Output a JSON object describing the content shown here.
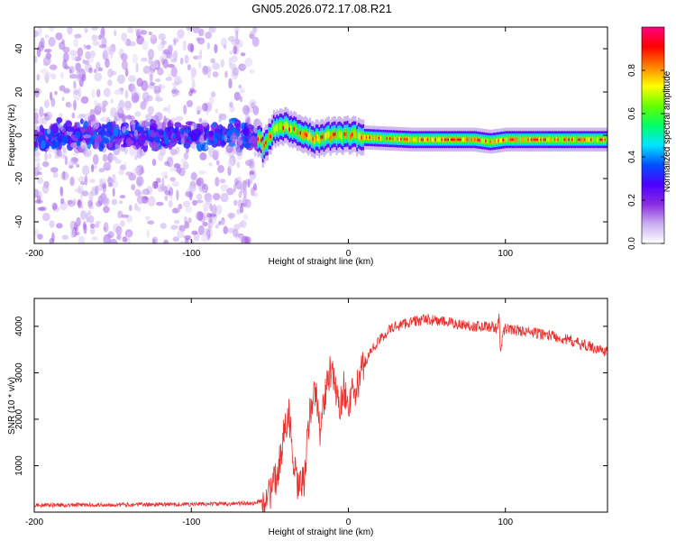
{
  "figure": {
    "title": "GN05.2026.072.17.08.R21"
  },
  "chart_data": [
    {
      "type": "heatmap",
      "title": "GN05.2026.072.17.08.R21",
      "xlabel": "Height of straight line (km)",
      "ylabel": "Frequency (Hz)",
      "xlim": [
        -200,
        165
      ],
      "ylim": [
        -50,
        50
      ],
      "xticks": [
        -200,
        -100,
        0,
        100
      ],
      "yticks": [
        -40,
        -20,
        0,
        20,
        40
      ],
      "colorbar": {
        "label": "Normalized spectral amplitude",
        "range": [
          0,
          1
        ],
        "ticks": [
          "0.0",
          "0.2",
          "0.4",
          "0.6",
          "0.8"
        ],
        "colors": [
          "#ffffff",
          "#c9aef0",
          "#8a2be2",
          "#4b00ff",
          "#0050ff",
          "#00e5ff",
          "#00ff66",
          "#66ff00",
          "#ffff00",
          "#ff8000",
          "#ff0000",
          "#ff0080"
        ]
      },
      "regions": [
        {
          "x": [
            -200,
            -58
          ],
          "description_value": "scattered",
          "freq_center": 0,
          "freq_spread": 50,
          "amplitude": [
            0.05,
            0.35
          ]
        },
        {
          "x": [
            -58,
            10
          ],
          "freq_center": 1,
          "freq_spread": 5,
          "amplitude": [
            0.3,
            0.9
          ]
        },
        {
          "x": [
            10,
            165
          ],
          "freq_center": -2,
          "freq_spread": 2,
          "amplitude": [
            0.4,
            1.0
          ]
        }
      ],
      "ridge": [
        {
          "x": -55,
          "f": -7
        },
        {
          "x": -48,
          "f": 3
        },
        {
          "x": -40,
          "f": 4
        },
        {
          "x": -30,
          "f": 1
        },
        {
          "x": -22,
          "f": -2
        },
        {
          "x": -10,
          "f": 0
        },
        {
          "x": 0,
          "f": 0
        },
        {
          "x": 10,
          "f": -1
        },
        {
          "x": 40,
          "f": -2
        },
        {
          "x": 80,
          "f": -2
        },
        {
          "x": 90,
          "f": -3
        },
        {
          "x": 100,
          "f": -2
        },
        {
          "x": 165,
          "f": -2
        }
      ]
    },
    {
      "type": "line",
      "xlabel": "Height of straight line (km)",
      "ylabel": "SNR (10 * v/v)",
      "xlim": [
        -200,
        165
      ],
      "ylim": [
        0,
        4600
      ],
      "xticks": [
        -200,
        -100,
        0,
        100
      ],
      "yticks": [
        1000,
        2000,
        3000,
        4000
      ],
      "series": [
        {
          "name": "SNR",
          "color": "#e8312f",
          "x": [
            -200,
            -150,
            -100,
            -80,
            -60,
            -55,
            -50,
            -45,
            -42,
            -38,
            -35,
            -32,
            -28,
            -25,
            -22,
            -20,
            -18,
            -15,
            -12,
            -10,
            -8,
            -5,
            -3,
            0,
            2,
            5,
            8,
            10,
            15,
            20,
            25,
            30,
            35,
            40,
            50,
            60,
            70,
            80,
            90,
            95,
            96,
            97,
            98,
            100,
            110,
            120,
            130,
            140,
            150,
            160,
            165
          ],
          "y": [
            150,
            160,
            170,
            180,
            190,
            250,
            400,
            800,
            1500,
            2200,
            1000,
            500,
            700,
            2000,
            2600,
            2400,
            1800,
            2500,
            3000,
            2900,
            2600,
            2300,
            2700,
            2300,
            2500,
            2600,
            3000,
            3200,
            3500,
            3700,
            3900,
            4000,
            4050,
            4100,
            4150,
            4100,
            4050,
            4000,
            4000,
            3950,
            4300,
            3300,
            3800,
            3950,
            3900,
            3850,
            3800,
            3700,
            3600,
            3500,
            3450
          ],
          "noise": 150
        }
      ]
    }
  ]
}
